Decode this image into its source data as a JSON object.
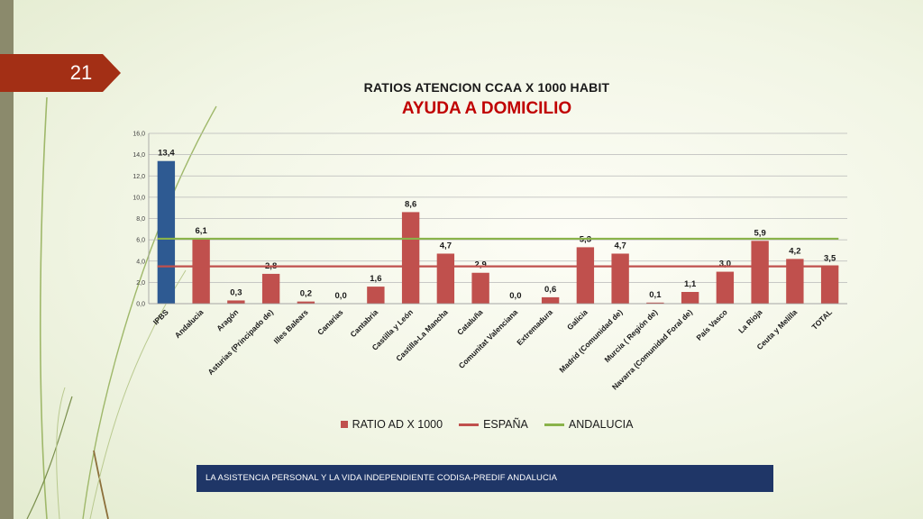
{
  "slide": {
    "number": "21",
    "footer": "LA ASISTENCIA PERSONAL Y LA VIDA INDEPENDIENTE CODISA-PREDIF ANDALUCIA"
  },
  "chart_data": {
    "type": "bar",
    "title": "RATIOS ATENCION CCAA  X 1000 HABIT",
    "subtitle": "AYUDA A DOMICILIO",
    "categories": [
      "IPBS",
      "Andalucia",
      "Aragón",
      "Asturias (Principado de)",
      "Illes Balears",
      "Canarias",
      "Cantabria",
      "Castilla y León",
      "Castilla-La Mancha",
      "Cataluña",
      "Comunitat Valenciana",
      "Extremadura",
      "Galicia",
      "Madrid (Comunidad de)",
      "Murcia ( Región de)",
      "Navarra (Comunidad Foral de)",
      "País Vasco",
      "La Rioja",
      "Ceuta y Melilla",
      "TOTAL"
    ],
    "series": [
      {
        "name": "RATIO AD X 1000",
        "type": "bar",
        "values": [
          13.4,
          6.1,
          0.3,
          2.8,
          0.2,
          0.0,
          1.6,
          8.6,
          4.7,
          2.9,
          0.0,
          0.6,
          5.3,
          4.7,
          0.1,
          1.1,
          3.0,
          5.9,
          4.2,
          3.5
        ],
        "value_labels": [
          "13,4",
          "6,1",
          "0,3",
          "2,8",
          "0,2",
          "0,0",
          "1,6",
          "8,6",
          "4,7",
          "2,9",
          "0,0",
          "0,6",
          "5,3",
          "4,7",
          "0,1",
          "1,1",
          "3,0",
          "5,9",
          "4,2",
          "3,5"
        ],
        "color": "#c0504d",
        "highlight_color": "#2e5a92",
        "highlight_index": 0
      },
      {
        "name": "ESPAÑA",
        "type": "line",
        "value": 3.5,
        "color": "#c0504d"
      },
      {
        "name": "ANDALUCIA",
        "type": "line",
        "value": 6.1,
        "color": "#8ab34a"
      }
    ],
    "ylim": [
      0,
      16
    ],
    "yticks": [
      0,
      2,
      4,
      6,
      8,
      10,
      12,
      14,
      16
    ],
    "ytick_labels": [
      "0,0",
      "2,0",
      "4,0",
      "6,0",
      "8,0",
      "10,0",
      "12,0",
      "14,0",
      "16,0"
    ],
    "grid": true,
    "legend_position": "bottom"
  }
}
